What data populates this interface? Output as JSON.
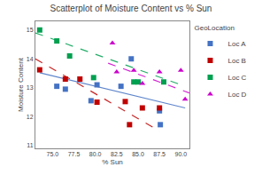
{
  "chart_data": {
    "type": "scatter",
    "title": "Scatterplot of Moisture Content vs % Sun",
    "xlabel": "% Sun",
    "ylabel": "Moisture Content",
    "xlim": [
      73.0,
      91.0
    ],
    "ylim": [
      10.9,
      15.3
    ],
    "xticks": [
      {
        "value": 75.0,
        "label": "75.0"
      },
      77.5,
      {
        "value": 80.0,
        "label": "80.0"
      },
      82.5,
      {
        "value": 85.0,
        "label": "85.0"
      },
      87.5,
      {
        "value": 90.0,
        "label": "90.0"
      }
    ],
    "yticks": [
      11,
      12,
      13,
      14,
      15
    ],
    "grid": false,
    "legend": "upper right",
    "legend_title": "GeoLocation",
    "series": [
      {
        "name": "Loc A",
        "color": "#4472c4",
        "marker": "square",
        "line_style": "solid",
        "x": [
          75.5,
          76.5,
          79.5,
          80.2,
          83.0,
          84.2,
          87.5,
          87.6
        ],
        "y": [
          13.05,
          12.95,
          12.55,
          13.1,
          13.05,
          14.0,
          12.2,
          11.72
        ],
        "fit_x": [
          73.5,
          90.5
        ],
        "fit_y": [
          13.52,
          12.3
        ]
      },
      {
        "name": "Loc B",
        "color": "#c00000",
        "marker": "square",
        "line_style": "dash",
        "x": [
          73.5,
          76.5,
          78.2,
          80.2,
          83.5,
          84.0,
          85.5,
          87.5
        ],
        "y": [
          13.62,
          13.3,
          13.3,
          12.5,
          12.52,
          11.72,
          12.3,
          12.3
        ],
        "fit_x": [
          73.0,
          87.5
        ],
        "fit_y": [
          14.0,
          11.5
        ]
      },
      {
        "name": "Loc C",
        "color": "#00a050",
        "marker": "square",
        "line_style": "dash",
        "x": [
          73.5,
          75.5,
          77.0,
          79.8,
          84.5,
          85.0,
          88.0
        ],
        "y": [
          15.0,
          14.62,
          14.1,
          13.35,
          13.2,
          13.2,
          13.2
        ],
        "fit_x": [
          73.0,
          90.5
        ],
        "fit_y": [
          14.9,
          13.05
        ]
      },
      {
        "name": "Loc D",
        "color": "#cc00cc",
        "marker": "triangle-up",
        "line_style": "dash",
        "x": [
          82.0,
          82.5,
          84.5,
          85.5,
          87.5,
          90.0,
          90.5
        ],
        "y": [
          14.55,
          13.55,
          13.6,
          13.15,
          13.55,
          13.6,
          12.6
        ],
        "fit_x": [
          81.5,
          91.0
        ],
        "fit_y": [
          13.85,
          12.82
        ]
      }
    ]
  }
}
